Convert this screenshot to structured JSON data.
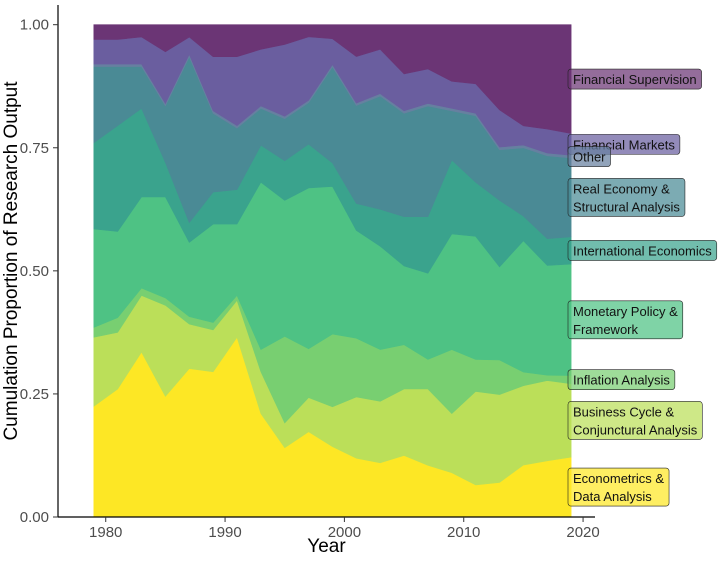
{
  "chart_data": {
    "type": "area",
    "stacked": true,
    "xlabel": "Year",
    "ylabel": "Cumulation Proportion of Research Output",
    "xlim": [
      1976,
      2021
    ],
    "ylim": [
      0,
      1.04
    ],
    "x_ticks": [
      1980,
      1990,
      2000,
      2010,
      2020
    ],
    "y_ticks": [
      0,
      0.25,
      0.5,
      0.75,
      1.0
    ],
    "y_tick_labels": [
      "0.00",
      "0.25",
      "0.50",
      "0.75",
      "1.00"
    ],
    "grid": false,
    "legend": "direct labels at right edge",
    "x": [
      1979,
      1981,
      1983,
      1985,
      1987,
      1989,
      1991,
      1993,
      1995,
      1997,
      1999,
      2001,
      2003,
      2005,
      2007,
      2009,
      2011,
      2013,
      2015,
      2017,
      2019
    ],
    "series": [
      {
        "name": "Econometrics & Data Analysis",
        "color": "#FDE725",
        "values": [
          0.225,
          0.26,
          0.335,
          0.245,
          0.3,
          0.295,
          0.365,
          0.21,
          0.14,
          0.175,
          0.15,
          0.12,
          0.11,
          0.125,
          0.105,
          0.09,
          0.065,
          0.065,
          0.095,
          0.105,
          0.11
        ]
      },
      {
        "name": "Business Cycle & Conjunctural Analysis",
        "color": "#BBDF59",
        "values": [
          0.14,
          0.115,
          0.115,
          0.185,
          0.09,
          0.085,
          0.075,
          0.085,
          0.05,
          0.07,
          0.085,
          0.125,
          0.125,
          0.135,
          0.155,
          0.12,
          0.19,
          0.165,
          0.145,
          0.15,
          0.135
        ]
      },
      {
        "name": "Inflation Analysis",
        "color": "#78CF71",
        "values": [
          0.02,
          0.03,
          0.015,
          0.015,
          0.015,
          0.015,
          0.01,
          0.045,
          0.175,
          0.1,
          0.155,
          0.12,
          0.105,
          0.09,
          0.06,
          0.13,
          0.065,
          0.065,
          0.025,
          0.01,
          0.015
        ]
      },
      {
        "name": "Monetary Policy & Framework",
        "color": "#4EC284",
        "values": [
          0.2,
          0.175,
          0.185,
          0.205,
          0.15,
          0.2,
          0.145,
          0.34,
          0.275,
          0.33,
          0.315,
          0.22,
          0.21,
          0.16,
          0.175,
          0.235,
          0.25,
          0.175,
          0.24,
          0.205,
          0.205
        ]
      },
      {
        "name": "International Economics",
        "color": "#3AA38D",
        "values": [
          0.175,
          0.215,
          0.18,
          0.07,
          0.04,
          0.065,
          0.07,
          0.075,
          0.08,
          0.09,
          0.05,
          0.055,
          0.075,
          0.1,
          0.115,
          0.15,
          0.11,
          0.125,
          0.045,
          0.05,
          0.05
        ]
      },
      {
        "name": "Real Economy & Structural Analysis",
        "color": "#4A8A95",
        "values": [
          0.155,
          0.12,
          0.085,
          0.115,
          0.335,
          0.16,
          0.125,
          0.075,
          0.085,
          0.085,
          0.205,
          0.2,
          0.23,
          0.21,
          0.225,
          0.1,
          0.135,
          0.095,
          0.125,
          0.155,
          0.145
        ]
      },
      {
        "name": "Other",
        "color": "#6680A0",
        "values": [
          0.005,
          0.005,
          0.005,
          0.005,
          0.005,
          0.005,
          0.005,
          0.005,
          0.005,
          0.005,
          0.005,
          0.005,
          0.005,
          0.005,
          0.005,
          0.005,
          0.005,
          0.005,
          0.005,
          0.005,
          0.005
        ]
      },
      {
        "name": "Financial Markets",
        "color": "#6A5E9F",
        "values": [
          0.05,
          0.05,
          0.055,
          0.105,
          0.035,
          0.11,
          0.14,
          0.115,
          0.145,
          0.13,
          0.055,
          0.095,
          0.09,
          0.075,
          0.07,
          0.055,
          0.06,
          0.07,
          0.035,
          0.045,
          0.04
        ]
      },
      {
        "name": "Financial Supervision",
        "color": "#6B3575",
        "values": [
          0.03,
          0.03,
          0.025,
          0.055,
          0.025,
          0.065,
          0.065,
          0.05,
          0.04,
          0.025,
          0.03,
          0.065,
          0.05,
          0.1,
          0.09,
          0.115,
          0.12,
          0.16,
          0.185,
          0.195,
          0.2
        ]
      }
    ],
    "labels": [
      {
        "series": "Financial Supervision",
        "lines": [
          "Financial Supervision"
        ]
      },
      {
        "series": "Financial Markets",
        "lines": [
          "Financial Markets"
        ]
      },
      {
        "series": "Other",
        "lines": [
          "Other"
        ]
      },
      {
        "series": "Real Economy & Structural Analysis",
        "lines": [
          "Real Economy &",
          "Structural Analysis"
        ]
      },
      {
        "series": "International Economics",
        "lines": [
          "International Economics"
        ]
      },
      {
        "series": "Monetary Policy & Framework",
        "lines": [
          "Monetary Policy &",
          "Framework"
        ]
      },
      {
        "series": "Inflation Analysis",
        "lines": [
          "Inflation Analysis"
        ]
      },
      {
        "series": "Business Cycle & Conjunctural Analysis",
        "lines": [
          "Business Cycle &",
          "Conjunctural Analysis"
        ]
      },
      {
        "series": "Econometrics & Data Analysis",
        "lines": [
          "Econometrics &",
          "Data Analysis"
        ]
      }
    ]
  }
}
